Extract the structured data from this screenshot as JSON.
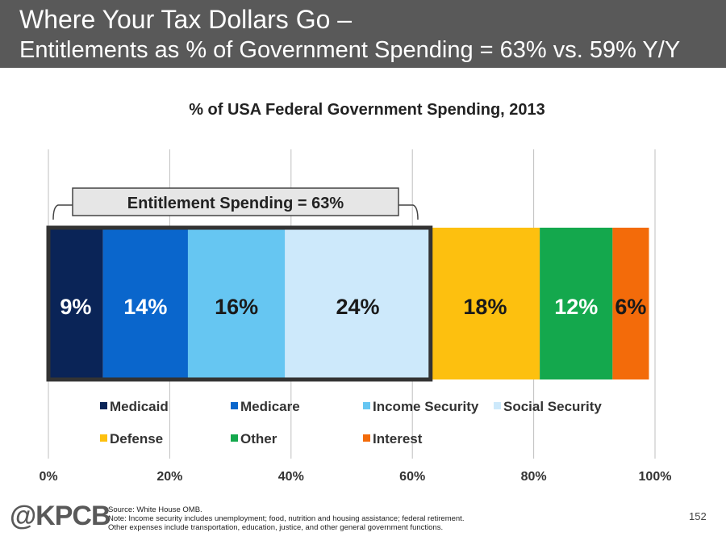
{
  "header": {
    "title": "Where Your Tax Dollars Go –",
    "subtitle": "Entitlements as % of Government Spending = 63% vs. 59% Y/Y"
  },
  "chart_data": {
    "type": "bar",
    "orientation": "horizontal-stacked-100",
    "title": "% of USA Federal Government Spending, 2013",
    "categories": [
      "2013"
    ],
    "series": [
      {
        "name": "Medicaid",
        "values": [
          9
        ],
        "label": "9%",
        "color": "#0a2457",
        "label_color": "#ffffff"
      },
      {
        "name": "Medicare",
        "values": [
          14
        ],
        "label": "14%",
        "color": "#0a66cc",
        "label_color": "#ffffff"
      },
      {
        "name": "Income Security",
        "values": [
          16
        ],
        "label": "16%",
        "color": "#66c6f2",
        "label_color": "#1a1a1a"
      },
      {
        "name": "Social Security",
        "values": [
          24
        ],
        "label": "24%",
        "color": "#cde9fb",
        "label_color": "#1a1a1a"
      },
      {
        "name": "Defense",
        "values": [
          18
        ],
        "label": "18%",
        "color": "#fdc00f",
        "label_color": "#1a1a1a"
      },
      {
        "name": "Other",
        "values": [
          12
        ],
        "label": "12%",
        "color": "#14a84d",
        "label_color": "#ffffff"
      },
      {
        "name": "Interest",
        "values": [
          6
        ],
        "label": "6%",
        "color": "#f36b0a",
        "label_color": "#1a1a1a"
      }
    ],
    "xlim": [
      0,
      100
    ],
    "xticks": [
      0,
      20,
      40,
      60,
      80,
      100
    ],
    "xtick_labels": [
      "0%",
      "20%",
      "40%",
      "60%",
      "80%",
      "100%"
    ],
    "grid": true,
    "legend_position": "bottom",
    "annotation": {
      "text": "Entitlement Spending = 63%",
      "covers_series": [
        "Medicaid",
        "Medicare",
        "Income Security",
        "Social Security"
      ],
      "total": 63
    }
  },
  "footer": {
    "logo": "@KPCB",
    "source": "Source: White House OMB.",
    "note1": "Note: Income security includes unemployment; food, nutrition and housing assistance; federal retirement.",
    "note2": "Other expenses include transportation, education, justice, and other general government functions.",
    "page_number": "152"
  }
}
